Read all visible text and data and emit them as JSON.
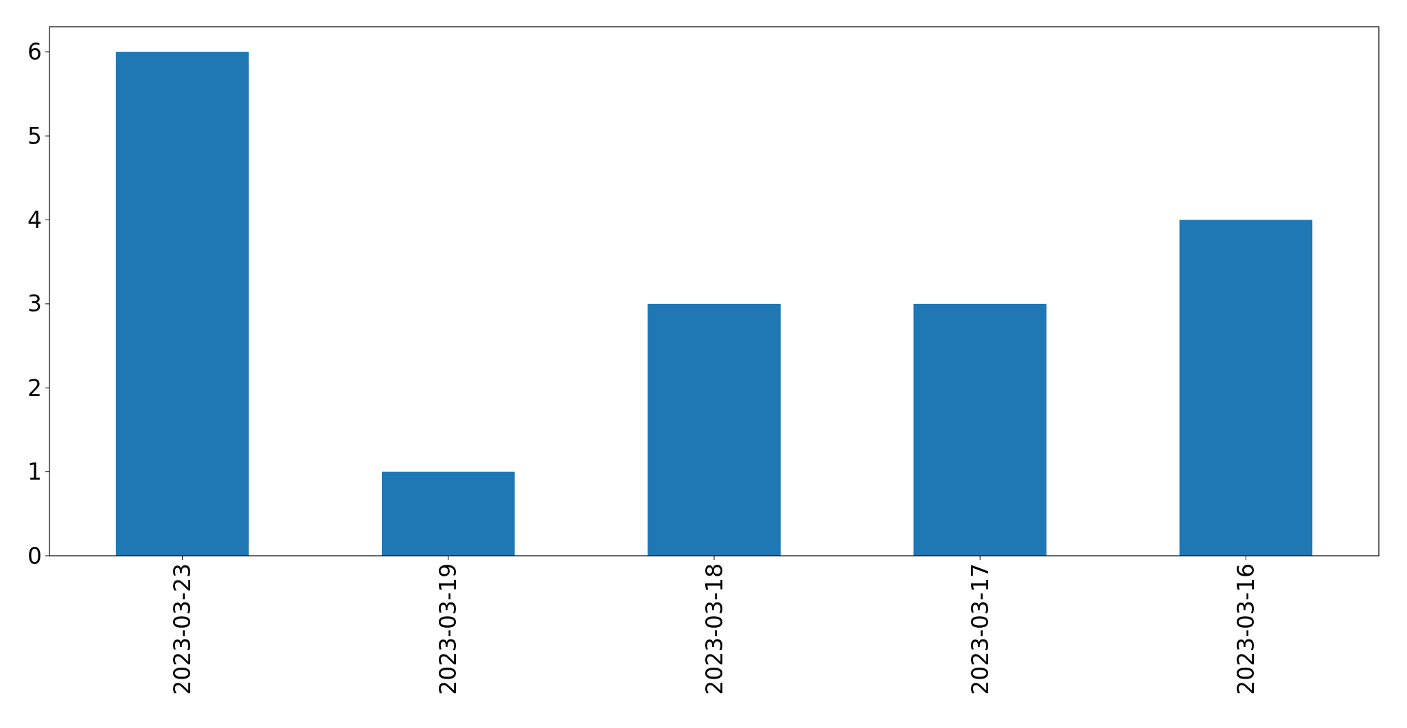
{
  "chart_data": {
    "type": "bar",
    "categories": [
      "2023-03-23",
      "2023-03-19",
      "2023-03-18",
      "2023-03-17",
      "2023-03-16"
    ],
    "values": [
      6,
      1,
      3,
      3,
      4
    ],
    "color": "#1f77b4",
    "ylim": [
      0,
      6.3
    ],
    "yticks": [
      0,
      1,
      2,
      3,
      4,
      5,
      6
    ],
    "grid": false
  }
}
